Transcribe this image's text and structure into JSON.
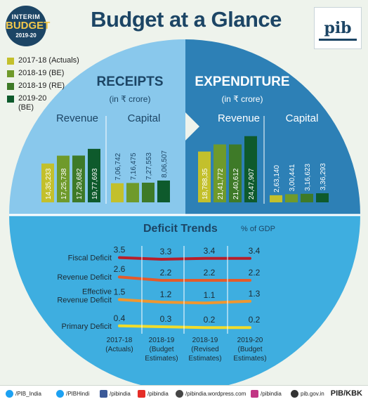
{
  "header": {
    "badge_line1": "INTERIM",
    "badge_line2": "BUDGET",
    "badge_line3": "2019-20",
    "title": "Budget at a Glance",
    "logo_text": "pib"
  },
  "legend": [
    {
      "label": "2017-18 (Actuals)",
      "color": "#c3c02c"
    },
    {
      "label": "2018-19 (BE)",
      "color": "#6f9a2b"
    },
    {
      "label": "2018-19 (RE)",
      "color": "#3e7a28"
    },
    {
      "label": "2019-20 (BE)",
      "color": "#0e5a2c"
    }
  ],
  "colors": {
    "receipts_bg": "#89c8ec",
    "expenditure_bg": "#2d80b6",
    "deficit_bg": "#3eaee0",
    "title_navy": "#1c4565"
  },
  "chart_data": [
    {
      "type": "bar",
      "title": "RECEIPTS",
      "subtitle": "(in ₹ crore)",
      "groups": [
        "Revenue",
        "Capital"
      ],
      "series_names": [
        "2017-18 (Actuals)",
        "2018-19 (BE)",
        "2018-19 (RE)",
        "2019-20 (BE)"
      ],
      "values": {
        "Revenue": [
          1435233,
          1725738,
          1729682,
          1977693
        ],
        "Capital": [
          706742,
          716475,
          727553,
          806507
        ]
      },
      "value_labels": {
        "Revenue": [
          "14,35,233",
          "17,25,738",
          "17,29,682",
          "19,77,693"
        ],
        "Capital": [
          "7,06,742",
          "7,16,475",
          "7,27,553",
          "8,06,507"
        ]
      }
    },
    {
      "type": "bar",
      "title": "EXPENDITURE",
      "subtitle": "(in ₹ crore)",
      "groups": [
        "Revenue",
        "Capital"
      ],
      "series_names": [
        "2017-18 (Actuals)",
        "2018-19 (BE)",
        "2018-19 (RE)",
        "2019-20 (BE)"
      ],
      "values": {
        "Revenue": [
          1878835,
          2141772,
          2140612,
          2447907
        ],
        "Capital": [
          263140,
          300441,
          316623,
          336293
        ]
      },
      "value_labels": {
        "Revenue": [
          "18,788,35",
          "21,41,772",
          "21,40,612",
          "24,47,907"
        ],
        "Capital": [
          "2,63,140",
          "3,00,441",
          "3,16,623",
          "3,36,293"
        ]
      }
    },
    {
      "type": "line",
      "title": "Deficit Trends",
      "unit_label": "% of GDP",
      "categories": [
        "2017-18\n(Actuals)",
        "2018-19\n(Budget\nEstimates)",
        "2018-19\n(Revised\nEstimates)",
        "2019-20\n(Budget\nEstimates)"
      ],
      "series": [
        {
          "name": "Fiscal Deficit",
          "values": [
            3.5,
            3.3,
            3.4,
            3.4
          ],
          "labels": [
            "3.5",
            "3.3",
            "3.4",
            "3.4"
          ],
          "color": "#b81e2a"
        },
        {
          "name": "Revenue Deficit",
          "values": [
            2.6,
            2.2,
            2.2,
            2.2
          ],
          "labels": [
            "2.6",
            "2.2",
            "2.2",
            "2.2"
          ],
          "color": "#e55b2a"
        },
        {
          "name": "Effective\nRevenue Deficit",
          "values": [
            1.5,
            1.2,
            1.1,
            1.3
          ],
          "labels": [
            "1.5",
            "1.2",
            "1.1",
            "1.3"
          ],
          "color": "#f0972f"
        },
        {
          "name": "Primary Deficit",
          "values": [
            0.4,
            0.3,
            0.2,
            0.2
          ],
          "labels": [
            "0.4",
            "0.3",
            "0.2",
            "0.2"
          ],
          "color": "#f1dc2a"
        }
      ]
    }
  ],
  "footer": {
    "items": [
      {
        "icon": "twitter-icon",
        "text": "/PIB_India",
        "color": "#1da1f2"
      },
      {
        "icon": "twitter-icon",
        "text": "/PIBHindi",
        "color": "#1da1f2"
      },
      {
        "icon": "facebook-icon",
        "text": "/pibindia",
        "color": "#3b5998"
      },
      {
        "icon": "youtube-icon",
        "text": "/pibindia",
        "color": "#e52d27"
      },
      {
        "icon": "wordpress-icon",
        "text": "/pibindia.wordpress.com",
        "color": "#464646"
      },
      {
        "icon": "instagram-icon",
        "text": "/pibindia",
        "color": "#c13584"
      },
      {
        "icon": "globe-icon",
        "text": "pib.gov.in",
        "color": "#333333"
      }
    ],
    "credit": "PIB/KBK"
  }
}
